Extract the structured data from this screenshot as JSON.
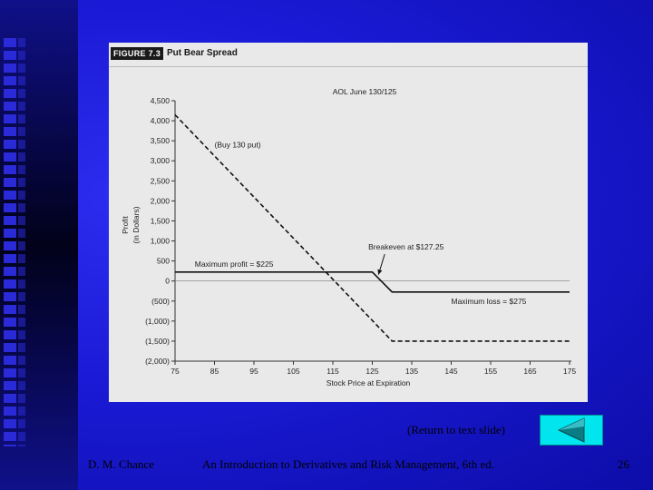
{
  "figure": {
    "label": "FIGURE 7.3",
    "title": "Put Bear Spread"
  },
  "chart_data": {
    "type": "line",
    "subtitle": "AOL June 130/125",
    "xlabel": "Stock Price at Expiration",
    "ylabel_lines": [
      "Profit",
      "(in Dollars)"
    ],
    "xlim": [
      75,
      175
    ],
    "ylim": [
      -2000,
      4500
    ],
    "x_ticks": [
      {
        "value": 75,
        "label": "75"
      },
      {
        "value": 85,
        "label": "85"
      },
      {
        "value": 95,
        "label": "95"
      },
      {
        "value": 105,
        "label": "105"
      },
      {
        "value": 115,
        "label": "115"
      },
      {
        "value": 125,
        "label": "125"
      },
      {
        "value": 135,
        "label": "135"
      },
      {
        "value": 145,
        "label": "145"
      },
      {
        "value": 155,
        "label": "155"
      },
      {
        "value": 165,
        "label": "165"
      },
      {
        "value": 175,
        "label": "175"
      }
    ],
    "y_ticks": [
      {
        "value": 4500,
        "label": "4,500"
      },
      {
        "value": 4000,
        "label": "4,000"
      },
      {
        "value": 3500,
        "label": "3,500"
      },
      {
        "value": 3000,
        "label": "3,000"
      },
      {
        "value": 2500,
        "label": "2,500"
      },
      {
        "value": 2000,
        "label": "2,000"
      },
      {
        "value": 1500,
        "label": "1,500"
      },
      {
        "value": 1000,
        "label": "1,000"
      },
      {
        "value": 500,
        "label": "500"
      },
      {
        "value": 0,
        "label": "0"
      },
      {
        "value": -500,
        "label": "(500)"
      },
      {
        "value": -1000,
        "label": "(1,000)"
      },
      {
        "value": -1500,
        "label": "(1,500)"
      },
      {
        "value": -2000,
        "label": "(2,000)"
      }
    ],
    "series": [
      {
        "name": "Buy 130 put",
        "style": "dashed",
        "x": [
          75,
          130,
          175
        ],
        "y": [
          4150,
          -1500,
          -1500
        ]
      },
      {
        "name": "Put bear spread",
        "style": "solid",
        "x": [
          75,
          125,
          130,
          175
        ],
        "y": [
          225,
          225,
          -275,
          -275
        ]
      }
    ],
    "annotations": [
      {
        "id": "buy-put",
        "text": "(Buy 130 put)",
        "x": 85,
        "y": 3400
      },
      {
        "id": "breakeven",
        "text": "Breakeven at $127.25",
        "x": 124,
        "y": 850
      },
      {
        "id": "max-profit",
        "text": "Maximum profit = $225",
        "x": 80,
        "y": 420
      },
      {
        "id": "max-loss",
        "text": "Maximum loss = $275",
        "x": 145,
        "y": -500
      }
    ],
    "breakeven_point": {
      "x": 127.25,
      "y": 0
    }
  },
  "navigation": {
    "return_label": "(Return to text slide)"
  },
  "footer": {
    "author": "D. M. Chance",
    "book": "An Introduction to Derivatives and Risk Management, 6th ed.",
    "page": "26"
  }
}
